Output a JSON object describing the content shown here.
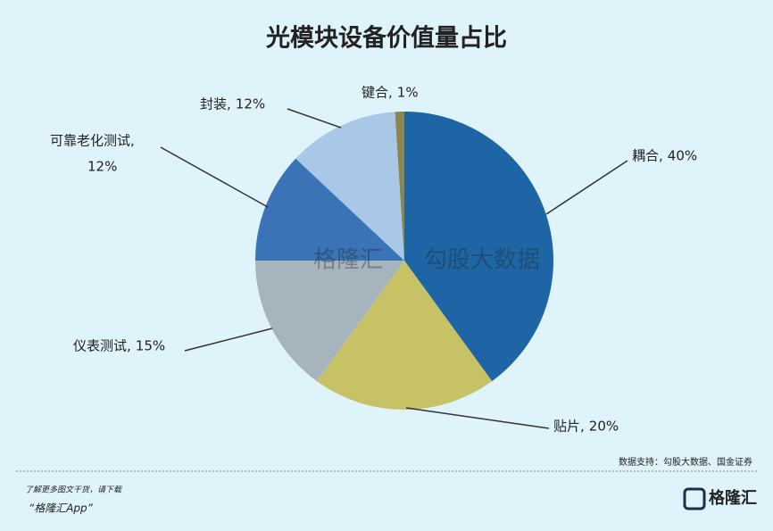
{
  "chart_data": {
    "type": "pie",
    "title": "光模块设备价值量占比",
    "categories": [
      "耦合,",
      "贴片,",
      "仪表测试,",
      "可靠老化测试,",
      "封装,",
      "键合,"
    ],
    "values": [
      40,
      20,
      15,
      12,
      12,
      1
    ],
    "value_labels": [
      "40%",
      "20%",
      "15%",
      "12%",
      "12%",
      "1%"
    ],
    "colors": [
      "#1d65a4",
      "#c8c266",
      "#a6b5bd",
      "#3a74b6",
      "#a9c8e7",
      "#8b8550"
    ],
    "source": "数据支持：勾股大数据、国金证券"
  },
  "watermarks": [
    "格隆汇",
    "勾股大数据"
  ],
  "footer": {
    "line1": "了解更多图文干货，请下载",
    "line2": "“格隆汇App”",
    "logo": "格隆汇"
  }
}
